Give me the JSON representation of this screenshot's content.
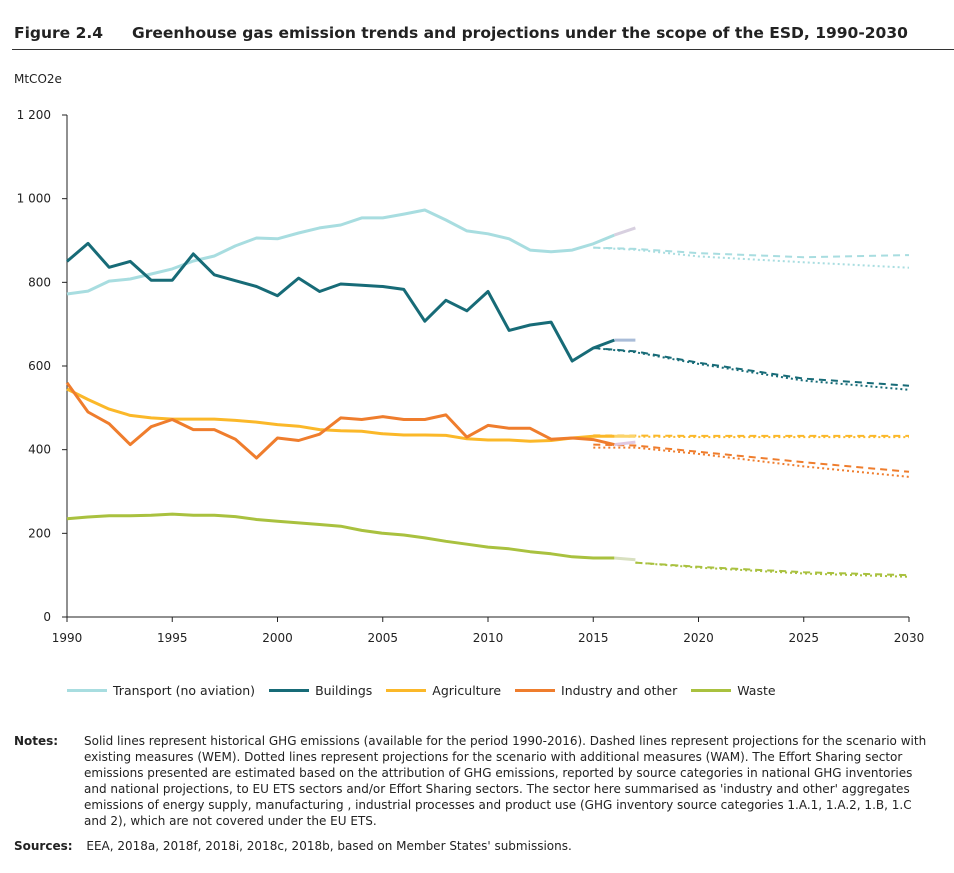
{
  "figure_label": "Figure 2.4",
  "title": "Greenhouse gas emission trends and projections under the scope of the ESD, 1990-2030",
  "notes_label": "Notes:",
  "notes": "Solid lines represent historical GHG emissions (available for the period 1990-2016). Dashed lines represent projections for the scenario with existing measures (WEM). Dotted lines represent projections for the scenario with additional measures (WAM). The Effort Sharing sector emissions presented are estimated based on the attribution of GHG emissions, reported by source categories in national GHG inventories and national projections, to EU ETS sectors and/or Effort Sharing sectors. The sector here summarised as 'industry and other' aggregates emissions of energy supply, manufacturing , industrial processes and product use (GHG inventory source categories 1.A.1, 1.A.2, 1.B, 1.C and 2), which are not covered under the EU ETS.",
  "sources_label": "Sources:",
  "sources": "EEA, 2018a, 2018f, 2018i, 2018c, 2018b, based on Member States' submissions.",
  "chart_data": {
    "type": "line",
    "ylabel": "MtCO2e",
    "ylabel_main": "MtCO",
    "ylabel_sub": "2",
    "ylabel_tail": "e",
    "xlim": [
      1990,
      2030
    ],
    "ylim": [
      0,
      1200
    ],
    "x_ticks": [
      1990,
      1995,
      2000,
      2005,
      2010,
      2015,
      2020,
      2025,
      2030
    ],
    "x_tick_labels": [
      "1990",
      "1995",
      "2000",
      "2005",
      "2010",
      "2015",
      "2020",
      "2025",
      "2030"
    ],
    "y_ticks": [
      0,
      200,
      400,
      600,
      800,
      1000,
      1200
    ],
    "y_tick_labels": [
      "0",
      "200",
      "400",
      "600",
      "800",
      "1 000",
      "1 200"
    ],
    "grid": false,
    "legend_position": "bottom",
    "historical_years": [
      1990,
      2016
    ],
    "series": [
      {
        "name": "Transport (no aviation)",
        "color": "#a8dde0",
        "proxy_color": "#d8d0e0",
        "historical": [
          772,
          779,
          803,
          808,
          820,
          832,
          851,
          863,
          887,
          906,
          904,
          918,
          930,
          937,
          954,
          954,
          963,
          973,
          949,
          923,
          916,
          904,
          877,
          873,
          877,
          892,
          913
        ],
        "proxy_2017": 930,
        "wem": [
          [
            2015,
            883
          ],
          [
            2017,
            880
          ],
          [
            2020,
            870
          ],
          [
            2025,
            860
          ],
          [
            2030,
            865
          ]
        ],
        "wam": [
          [
            2015,
            883
          ],
          [
            2017,
            878
          ],
          [
            2020,
            862
          ],
          [
            2025,
            848
          ],
          [
            2030,
            835
          ]
        ]
      },
      {
        "name": "Buildings",
        "color": "#176b77",
        "proxy_color": "#a9bcd8",
        "historical": [
          850,
          893,
          836,
          850,
          805,
          805,
          868,
          818,
          804,
          790,
          768,
          810,
          778,
          796,
          793,
          790,
          783,
          707,
          757,
          732,
          778,
          685,
          698,
          705,
          612,
          643,
          662
        ],
        "proxy_2017": 662,
        "wem": [
          [
            2015,
            643
          ],
          [
            2017,
            635
          ],
          [
            2020,
            608
          ],
          [
            2025,
            570
          ],
          [
            2030,
            553
          ]
        ],
        "wam": [
          [
            2015,
            643
          ],
          [
            2017,
            633
          ],
          [
            2020,
            605
          ],
          [
            2025,
            565
          ],
          [
            2030,
            543
          ]
        ]
      },
      {
        "name": "Agriculture",
        "color": "#fbb829",
        "proxy_color": "#fbd46a",
        "historical": [
          545,
          520,
          497,
          482,
          476,
          473,
          473,
          473,
          470,
          466,
          460,
          456,
          448,
          445,
          444,
          438,
          435,
          435,
          434,
          426,
          423,
          423,
          420,
          422,
          428,
          432,
          432
        ],
        "proxy_2017": 432,
        "wem": [
          [
            2015,
            434
          ],
          [
            2020,
            433
          ],
          [
            2025,
            433
          ],
          [
            2030,
            433
          ]
        ],
        "wam": [
          [
            2015,
            432
          ],
          [
            2020,
            430
          ],
          [
            2025,
            430
          ],
          [
            2030,
            430
          ]
        ]
      },
      {
        "name": "Industry and other",
        "color": "#ef7d2d",
        "proxy_color": "#e0c8e0",
        "historical": [
          560,
          490,
          462,
          412,
          455,
          472,
          448,
          448,
          425,
          380,
          428,
          422,
          437,
          476,
          472,
          479,
          472,
          472,
          483,
          430,
          458,
          451,
          451,
          425,
          428,
          424,
          412
        ],
        "proxy_2017": 418,
        "wem": [
          [
            2015,
            412
          ],
          [
            2017,
            410
          ],
          [
            2020,
            395
          ],
          [
            2025,
            370
          ],
          [
            2030,
            347
          ]
        ],
        "wam": [
          [
            2015,
            405
          ],
          [
            2017,
            405
          ],
          [
            2020,
            390
          ],
          [
            2025,
            360
          ],
          [
            2030,
            335
          ]
        ]
      },
      {
        "name": "Waste",
        "color": "#a9c13f",
        "proxy_color": "#d8e0c0",
        "historical": [
          235,
          239,
          242,
          242,
          243,
          246,
          243,
          243,
          240,
          233,
          229,
          225,
          221,
          217,
          207,
          200,
          196,
          189,
          181,
          174,
          167,
          163,
          156,
          151,
          144,
          141,
          141
        ],
        "proxy_2017": 137,
        "wem": [
          [
            2017,
            130
          ],
          [
            2020,
            120
          ],
          [
            2025,
            107
          ],
          [
            2030,
            100
          ]
        ],
        "wam": [
          [
            2017,
            130
          ],
          [
            2020,
            118
          ],
          [
            2025,
            104
          ],
          [
            2030,
            96
          ]
        ]
      }
    ]
  }
}
